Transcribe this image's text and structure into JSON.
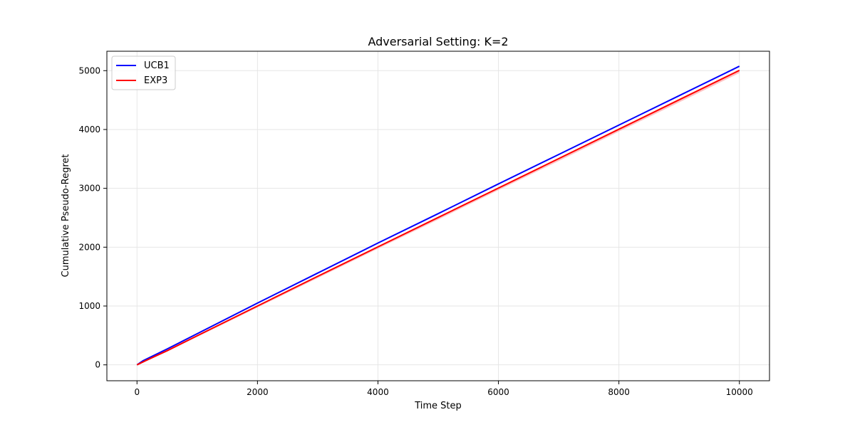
{
  "chart_data": {
    "type": "line",
    "title": "Adversarial Setting: K=2",
    "xlabel": "Time Step",
    "ylabel": "Cumulative Pseudo-Regret",
    "xlim": [
      -500,
      10500
    ],
    "ylim": [
      -270,
      5330
    ],
    "xticks": [
      0,
      2000,
      4000,
      6000,
      8000,
      10000
    ],
    "yticks": [
      0,
      1000,
      2000,
      3000,
      4000,
      5000
    ],
    "grid": true,
    "legend": "top-left",
    "series": [
      {
        "name": "UCB1",
        "color": "#0000ff",
        "x": [
          0,
          100,
          500,
          1000,
          2000,
          3000,
          4000,
          5000,
          6000,
          7000,
          8000,
          9000,
          10000
        ],
        "y": [
          0,
          70,
          270,
          530,
          1050,
          1560,
          2070,
          2570,
          3075,
          3575,
          4075,
          4575,
          5075
        ]
      },
      {
        "name": "EXP3",
        "color": "#ff0000",
        "band_color": "#ff9999",
        "x": [
          0,
          100,
          500,
          1000,
          2000,
          3000,
          4000,
          5000,
          6000,
          7000,
          8000,
          9000,
          10000
        ],
        "y": [
          0,
          50,
          240,
          495,
          1000,
          1505,
          2005,
          2505,
          3005,
          3505,
          4005,
          4505,
          5005
        ],
        "band_lower": [
          0,
          45,
          225,
          475,
          975,
          1475,
          1975,
          2470,
          2970,
          3465,
          3965,
          4460,
          4960
        ],
        "band_upper": [
          0,
          55,
          250,
          505,
          1010,
          1515,
          2015,
          2515,
          3015,
          3515,
          4015,
          4515,
          5015
        ]
      }
    ]
  }
}
